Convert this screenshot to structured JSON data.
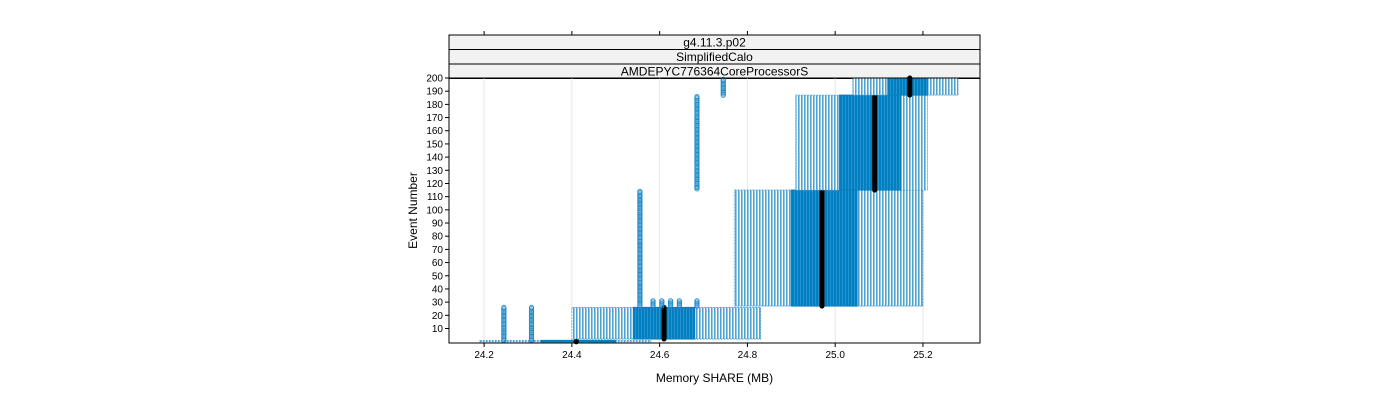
{
  "chart_data": {
    "type": "box",
    "strips": [
      "g4.11.3.p02",
      "SimplifiedCalo",
      "AMDEPYC776364CoreProcessorS"
    ],
    "xlabel": "Memory SHARE (MB)",
    "ylabel": "Event Number",
    "xlim": [
      24.12,
      25.33
    ],
    "ylim": [
      -1,
      200
    ],
    "x_ticks": [
      "24.2",
      "24.4",
      "24.6",
      "24.8",
      "25.0",
      "25.2"
    ],
    "y_ticks": [
      "10",
      "20",
      "30",
      "40",
      "50",
      "60",
      "70",
      "80",
      "90",
      "100",
      "110",
      "120",
      "130",
      "140",
      "150",
      "160",
      "170",
      "180",
      "190",
      "200"
    ],
    "grid": "vertical",
    "colors": {
      "box_fill": "#0080c0",
      "whisker": "#4fa3d3",
      "median": "#000000",
      "outlier": "#1f8ac8",
      "strip_bg": "#f2f2f2"
    },
    "boxes": [
      {
        "y0": 0,
        "y1": 1,
        "whisker_lo": 24.19,
        "q1": 24.33,
        "median": 24.41,
        "q3": 24.5,
        "whisker_hi": 24.58
      },
      {
        "y0": 2,
        "y1": 26,
        "whisker_lo": 24.4,
        "q1": 24.54,
        "median": 24.61,
        "q3": 24.68,
        "whisker_hi": 24.83
      },
      {
        "y0": 27,
        "y1": 115,
        "whisker_lo": 24.77,
        "q1": 24.9,
        "median": 24.97,
        "q3": 25.05,
        "whisker_hi": 25.2
      },
      {
        "y0": 115,
        "y1": 187,
        "whisker_lo": 24.91,
        "q1": 25.01,
        "median": 25.09,
        "q3": 25.15,
        "whisker_hi": 25.21
      },
      {
        "y0": 187,
        "y1": 200,
        "whisker_lo": 25.04,
        "q1": 25.12,
        "median": 25.17,
        "q3": 25.21,
        "whisker_hi": 25.28
      }
    ],
    "outlier_runs": [
      {
        "x": 24.245,
        "y0": 1,
        "y1": 26
      },
      {
        "x": 24.308,
        "y0": 1,
        "y1": 26
      },
      {
        "x": 24.555,
        "y0": 27,
        "y1": 114
      },
      {
        "x": 24.585,
        "y0": 27,
        "y1": 31
      },
      {
        "x": 24.605,
        "y0": 27,
        "y1": 31
      },
      {
        "x": 24.625,
        "y0": 27,
        "y1": 31
      },
      {
        "x": 24.645,
        "y0": 27,
        "y1": 31
      },
      {
        "x": 24.685,
        "y0": 27,
        "y1": 31
      },
      {
        "x": 24.685,
        "y0": 116,
        "y1": 186
      },
      {
        "x": 24.745,
        "y0": 187,
        "y1": 199
      }
    ]
  }
}
